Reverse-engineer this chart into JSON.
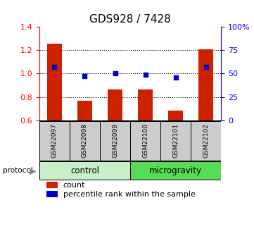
{
  "title": "GDS928 / 7428",
  "samples": [
    "GSM22097",
    "GSM22098",
    "GSM22099",
    "GSM22100",
    "GSM22101",
    "GSM22102"
  ],
  "count_values": [
    1.255,
    0.765,
    0.865,
    0.865,
    0.685,
    1.21
  ],
  "percentile_values": [
    57,
    47,
    50,
    49,
    46,
    57
  ],
  "groups": [
    {
      "label": "control",
      "indices": [
        0,
        1,
        2
      ],
      "color": "#c8f0c8"
    },
    {
      "label": "microgravity",
      "indices": [
        3,
        4,
        5
      ],
      "color": "#55dd55"
    }
  ],
  "ylim_left": [
    0.6,
    1.4
  ],
  "ylim_right": [
    0,
    100
  ],
  "yticks_left": [
    0.6,
    0.8,
    1.0,
    1.2,
    1.4
  ],
  "yticks_right": [
    0,
    25,
    50,
    75,
    100
  ],
  "bar_color": "#cc2200",
  "dot_color": "#0000cc",
  "bar_width": 0.5,
  "baseline": 0.6,
  "legend_count_label": "count",
  "legend_pct_label": "percentile rank within the sample",
  "protocol_label": "protocol",
  "background_color": "#ffffff",
  "sample_box_color": "#cccccc",
  "title_fontsize": 11,
  "tick_fontsize": 8,
  "label_fontsize": 8
}
